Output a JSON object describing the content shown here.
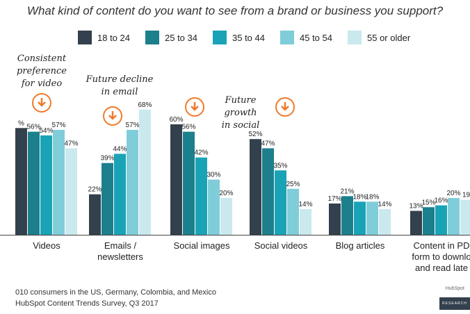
{
  "chart_data": {
    "type": "bar",
    "title": "What kind of content do you want to see from a brand or business you support?",
    "categories": [
      "Videos",
      "Emails / newsletters",
      "Social images",
      "Social videos",
      "Blog articles",
      "Content in PDF form to download and read later"
    ],
    "category_lines": [
      [
        "Videos"
      ],
      [
        "Emails /",
        "newsletters"
      ],
      [
        "Social images"
      ],
      [
        "Social videos"
      ],
      [
        "Blog articles"
      ],
      [
        "Content in PD",
        "form to downlo",
        "and read late"
      ]
    ],
    "series": [
      {
        "name": "18 to 24",
        "color": "#33404d",
        "values": [
          58,
          22,
          60,
          52,
          17,
          13
        ]
      },
      {
        "name": "25 to 34",
        "color": "#1c7f8c",
        "values": [
          56,
          39,
          56,
          47,
          21,
          15
        ]
      },
      {
        "name": "35 to 44",
        "color": "#1aa3b6",
        "values": [
          54,
          44,
          42,
          35,
          18,
          16
        ]
      },
      {
        "name": "45 to 54",
        "color": "#7fcdd9",
        "values": [
          57,
          57,
          30,
          25,
          18,
          20
        ]
      },
      {
        "name": "55 or older",
        "color": "#c9e9ee",
        "values": [
          47,
          68,
          20,
          14,
          14,
          19
        ]
      }
    ],
    "data_labels": [
      [
        "%",
        "22%",
        "60%",
        "52%",
        "17%",
        "13%"
      ],
      [
        "56%",
        "39%",
        "56%",
        "47%",
        "21%",
        "15%"
      ],
      [
        "54%",
        "44%",
        "42%",
        "35%",
        "18%",
        "16%"
      ],
      [
        "57%",
        "57%",
        "30%",
        "25%",
        "18%",
        "20%"
      ],
      [
        "47%",
        "68%",
        "20%",
        "14%",
        "14%",
        "19"
      ]
    ],
    "ylim": [
      0,
      100
    ],
    "xlabel": "",
    "ylabel": "",
    "grid": false,
    "legend_position": "top"
  },
  "annotations": {
    "video": [
      "Consistent",
      "preference",
      "for video"
    ],
    "email": [
      "Future decline",
      "in email"
    ],
    "social": [
      "Future growth",
      "in social"
    ]
  },
  "footer": {
    "line1": "010 consumers in the US, Germany, Colombia, and Mexico",
    "line2": "HubSpot Content Trends Survey, Q3 2017"
  },
  "brand": {
    "logo": "HubSpot",
    "badge": "RESEARCH"
  },
  "colors": {
    "accent": "#f07a2a",
    "text": "#333333"
  }
}
